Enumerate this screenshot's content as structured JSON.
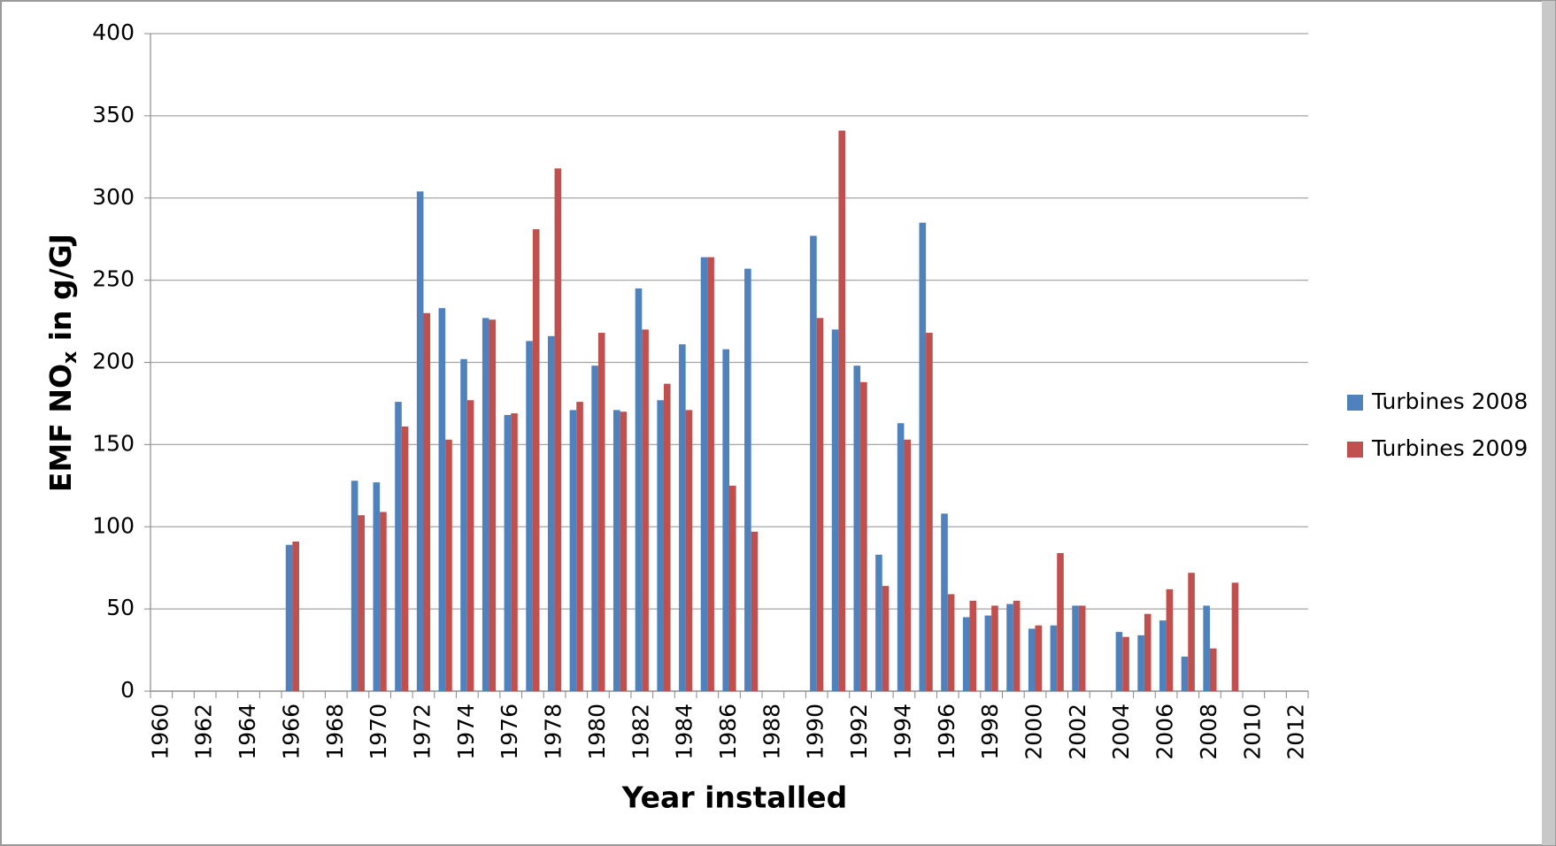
{
  "chart_data": {
    "type": "bar",
    "x_label": "Year installed",
    "y_label": {
      "text": "EMF NO",
      "subscript": "x",
      "suffix": " in g/GJ"
    },
    "categories": [
      "1960",
      null,
      "1962",
      null,
      "1964",
      null,
      "1966",
      null,
      "1968",
      null,
      "1970",
      null,
      "1972",
      null,
      "1974",
      null,
      "1976",
      null,
      "1978",
      null,
      "1980",
      null,
      "1982",
      null,
      "1984",
      null,
      "1986",
      null,
      "1988",
      null,
      "1990",
      null,
      "1992",
      null,
      "1994",
      null,
      "1996",
      null,
      "1998",
      null,
      "2000",
      null,
      "2002",
      null,
      "2004",
      null,
      "2006",
      null,
      "2008",
      null,
      "2010",
      null,
      "2012"
    ],
    "series": [
      {
        "name": "Turbines 2008",
        "color": "#4f81bd",
        "values": [
          null,
          null,
          null,
          null,
          null,
          null,
          89,
          null,
          null,
          128,
          127,
          176,
          304,
          233,
          202,
          227,
          168,
          213,
          216,
          171,
          198,
          171,
          245,
          177,
          211,
          264,
          208,
          257,
          null,
          null,
          277,
          220,
          198,
          83,
          163,
          285,
          108,
          45,
          46,
          53,
          38,
          40,
          52,
          null,
          36,
          34,
          43,
          21,
          52,
          null,
          null,
          null,
          null
        ]
      },
      {
        "name": "Turbines 2009",
        "color": "#c0504d",
        "values": [
          null,
          null,
          null,
          null,
          null,
          null,
          91,
          null,
          null,
          107,
          109,
          161,
          230,
          153,
          177,
          226,
          169,
          281,
          318,
          176,
          218,
          170,
          220,
          187,
          171,
          264,
          125,
          97,
          null,
          null,
          227,
          341,
          188,
          64,
          153,
          218,
          59,
          55,
          52,
          55,
          40,
          84,
          52,
          null,
          33,
          47,
          62,
          72,
          26,
          66,
          null,
          null,
          null
        ]
      }
    ],
    "ylim": [
      0,
      400
    ],
    "yticks": [
      0,
      50,
      100,
      150,
      200,
      250,
      300,
      350,
      400
    ],
    "grid": true,
    "legend": "right"
  }
}
